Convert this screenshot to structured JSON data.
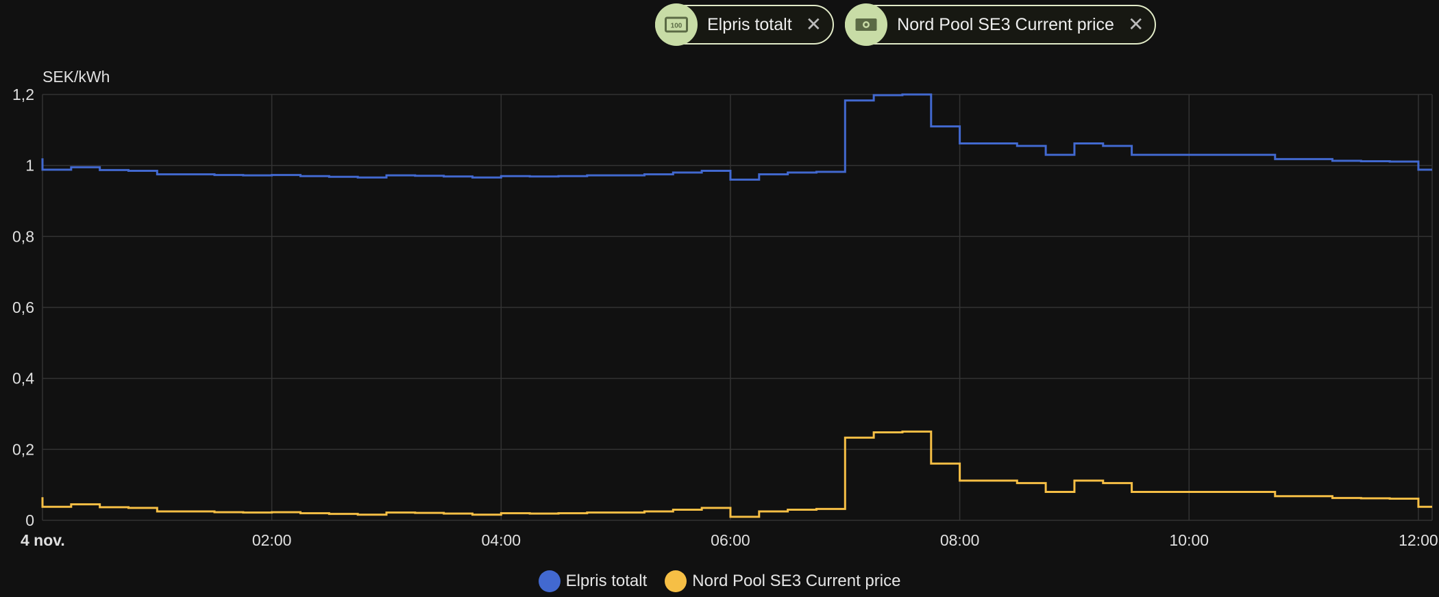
{
  "chips": [
    {
      "label": "Elpris totalt",
      "icon": "cash-100-icon"
    },
    {
      "label": "Nord Pool SE3 Current price",
      "icon": "cash-icon"
    }
  ],
  "colors": {
    "background": "#111111",
    "grid": "#333333",
    "series_blue": "#4269d0",
    "series_yellow": "#f6bf45",
    "chip_border": "#e3ecc9",
    "chip_avatar": "#c8dca6"
  },
  "chart_data": {
    "type": "line",
    "step": true,
    "unit_label": "SEK/kWh",
    "y_ticks": [
      "0",
      "0,2",
      "0,4",
      "0,6",
      "0,8",
      "1",
      "1,2"
    ],
    "y_tick_values": [
      0,
      0.2,
      0.4,
      0.6,
      0.8,
      1.0,
      1.2
    ],
    "ylim": [
      0,
      1.2
    ],
    "x_ticks": [
      {
        "h": 0,
        "label": "4 nov."
      },
      {
        "h": 2,
        "label": "02:00"
      },
      {
        "h": 4,
        "label": "04:00"
      },
      {
        "h": 6,
        "label": "06:00"
      },
      {
        "h": 8,
        "label": "08:00"
      },
      {
        "h": 10,
        "label": "10:00"
      },
      {
        "h": 12,
        "label": "12:00"
      }
    ],
    "xlim_hours": [
      0,
      12.12
    ],
    "grid": true,
    "legend_position": "bottom-center",
    "x_hours": [
      0,
      0.25,
      0.5,
      0.75,
      1.0,
      1.25,
      1.5,
      1.75,
      2.0,
      2.25,
      2.5,
      2.75,
      3.0,
      3.25,
      3.5,
      3.75,
      4.0,
      4.25,
      4.5,
      4.75,
      5.0,
      5.25,
      5.5,
      5.75,
      6.0,
      6.25,
      6.5,
      6.75,
      7.0,
      7.25,
      7.5,
      7.75,
      8.0,
      8.25,
      8.5,
      8.75,
      9.0,
      9.25,
      9.5,
      9.75,
      10.0,
      10.25,
      10.5,
      10.75,
      11.0,
      11.25,
      11.5,
      11.75,
      12.0
    ],
    "series": [
      {
        "name": "Elpris totalt",
        "color": "#4269d0",
        "start_value": 1.02,
        "values": [
          0.988,
          0.995,
          0.987,
          0.985,
          0.975,
          0.975,
          0.973,
          0.972,
          0.973,
          0.97,
          0.968,
          0.966,
          0.972,
          0.971,
          0.969,
          0.966,
          0.97,
          0.969,
          0.97,
          0.972,
          0.972,
          0.975,
          0.98,
          0.985,
          0.96,
          0.975,
          0.98,
          0.982,
          1.183,
          1.198,
          1.2,
          1.11,
          1.062,
          1.062,
          1.055,
          1.03,
          1.062,
          1.055,
          1.03,
          1.03,
          1.03,
          1.03,
          1.03,
          1.018,
          1.018,
          1.013,
          1.012,
          1.011,
          0.988
        ]
      },
      {
        "name": "Nord Pool SE3 Current price",
        "color": "#f6bf45",
        "start_value": 0.065,
        "values": [
          0.038,
          0.045,
          0.037,
          0.035,
          0.025,
          0.025,
          0.023,
          0.022,
          0.023,
          0.02,
          0.018,
          0.016,
          0.022,
          0.021,
          0.019,
          0.016,
          0.02,
          0.019,
          0.02,
          0.022,
          0.022,
          0.025,
          0.03,
          0.035,
          0.01,
          0.025,
          0.03,
          0.032,
          0.233,
          0.248,
          0.25,
          0.16,
          0.112,
          0.112,
          0.105,
          0.08,
          0.112,
          0.105,
          0.08,
          0.08,
          0.08,
          0.08,
          0.08,
          0.068,
          0.068,
          0.063,
          0.062,
          0.061,
          0.038
        ]
      }
    ]
  }
}
